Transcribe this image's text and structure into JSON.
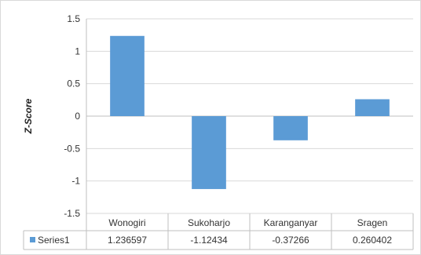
{
  "chart_data": {
    "type": "bar",
    "ylabel": "Z-Score",
    "xlabel": "",
    "title": "",
    "ylim": [
      -1.5,
      1.5
    ],
    "yticks": [
      1.5,
      1,
      0.5,
      0,
      -0.5,
      -1,
      -1.5
    ],
    "ytick_labels": [
      "1.5",
      "1",
      "0.5",
      "0",
      "-0.5",
      "-1",
      "-1.5"
    ],
    "categories": [
      "Wonogiri",
      "Sukoharjo",
      "Karanganyar",
      "Sragen"
    ],
    "series": [
      {
        "name": "Series1",
        "values": [
          1.236597,
          -1.12434,
          -0.37266,
          0.260402
        ],
        "value_labels": [
          "1.236597",
          "-1.12434",
          "-0.37266",
          "0.260402"
        ],
        "color": "#5B9BD5"
      }
    ],
    "grid": true,
    "data_table": true
  }
}
